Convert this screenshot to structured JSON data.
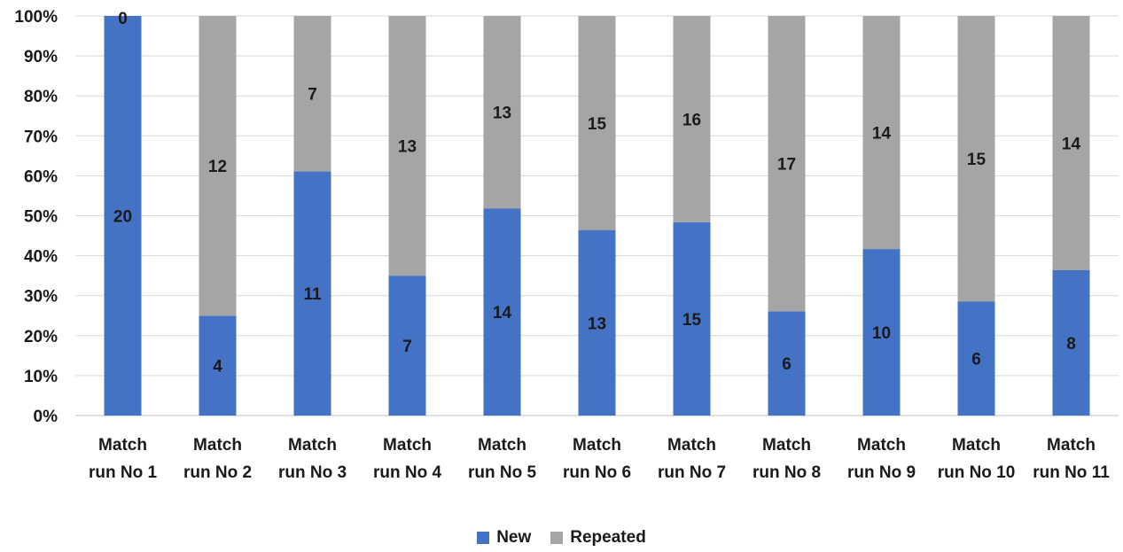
{
  "chart_data": {
    "type": "bar",
    "stacked": true,
    "percent_stacked": true,
    "categories": [
      [
        "Match",
        "run No 1"
      ],
      [
        "Match",
        "run No 2"
      ],
      [
        "Match",
        "run No 3"
      ],
      [
        "Match",
        "run No 4"
      ],
      [
        "Match",
        "run No 5"
      ],
      [
        "Match",
        "run No 6"
      ],
      [
        "Match",
        "run No 7"
      ],
      [
        "Match",
        "run No 8"
      ],
      [
        "Match",
        "run No 9"
      ],
      [
        "Match",
        "run No 10"
      ],
      [
        "Match",
        "run No 11"
      ]
    ],
    "series": [
      {
        "name": "New",
        "color": "#4472c4",
        "values": [
          20,
          4,
          11,
          7,
          14,
          13,
          15,
          6,
          10,
          6,
          8
        ]
      },
      {
        "name": "Repeated",
        "color": "#a5a5a5",
        "values": [
          0,
          12,
          7,
          13,
          13,
          15,
          16,
          17,
          14,
          15,
          14
        ]
      }
    ],
    "y_ticks": [
      "0%",
      "10%",
      "20%",
      "30%",
      "40%",
      "50%",
      "60%",
      "70%",
      "80%",
      "90%",
      "100%"
    ],
    "ylim": [
      0,
      100
    ],
    "grid": true,
    "legend_position": "bottom"
  }
}
